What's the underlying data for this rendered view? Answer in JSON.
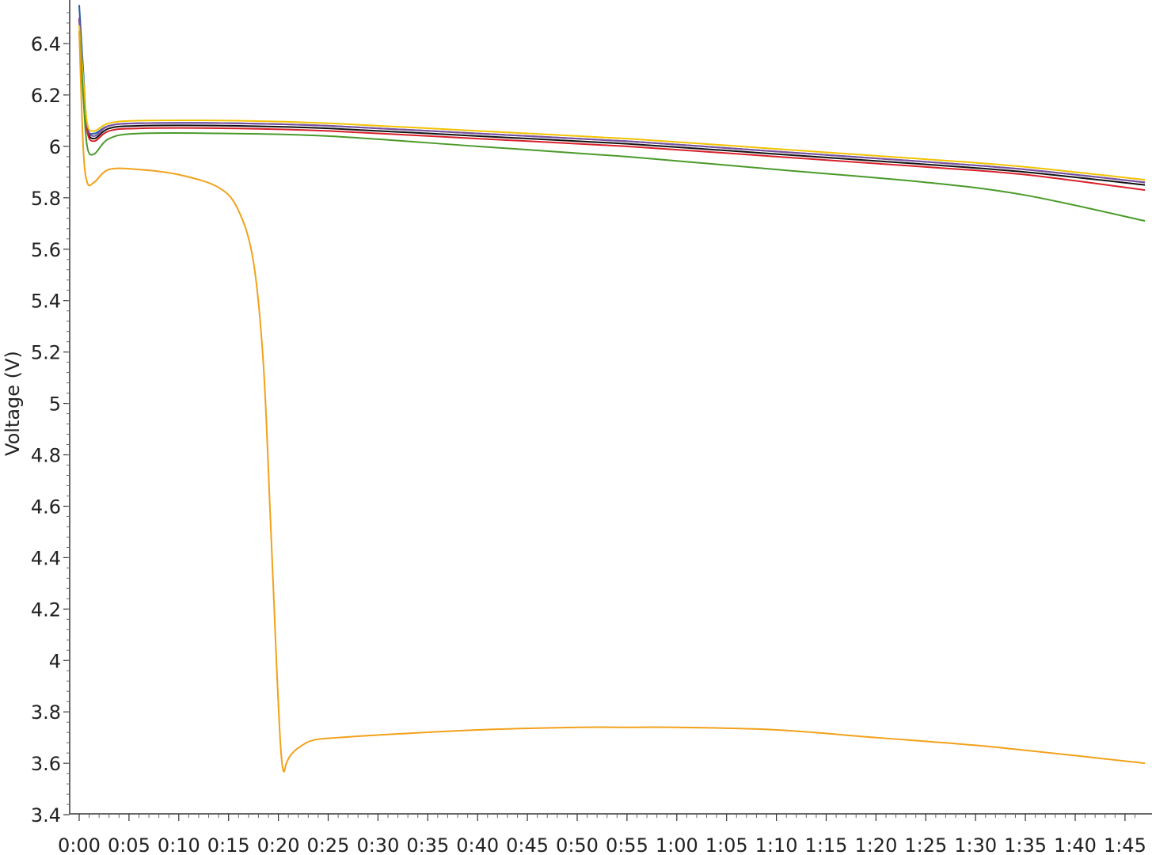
{
  "chart_data": {
    "type": "line",
    "title": "",
    "xlabel": "",
    "ylabel": "Voltage (V)",
    "xlim": [
      0,
      106
    ],
    "ylim": [
      3.4,
      6.55
    ],
    "grid": false,
    "legend": "none",
    "x_tick_labels": [
      "0:00",
      "0:05",
      "0:10",
      "0:15",
      "0:20",
      "0:25",
      "0:30",
      "0:35",
      "0:40",
      "0:45",
      "0:50",
      "0:55",
      "1:00",
      "1:05",
      "1:10",
      "1:15",
      "1:20",
      "1:25",
      "1:30",
      "1:35",
      "1:40",
      "1:45"
    ],
    "x_tick_values": [
      0,
      5,
      10,
      15,
      20,
      25,
      30,
      35,
      40,
      45,
      50,
      55,
      60,
      65,
      70,
      75,
      80,
      85,
      90,
      95,
      100,
      105
    ],
    "y_tick_labels": [
      "3.4",
      "3.6",
      "3.8",
      "4",
      "4.2",
      "4.4",
      "4.6",
      "4.8",
      "5",
      "5.2",
      "5.4",
      "5.6",
      "5.8",
      "6",
      "6.2",
      "6.4"
    ],
    "y_tick_values": [
      3.4,
      3.6,
      3.8,
      4.0,
      4.2,
      4.4,
      4.6,
      4.8,
      5.0,
      5.2,
      5.4,
      5.6,
      5.8,
      6.0,
      6.2,
      6.4
    ],
    "series": [
      {
        "color": "#1f5fa8",
        "x": [
          0,
          0.4,
          0.8,
          1.5,
          3,
          6,
          15,
          25,
          40,
          55,
          70,
          85,
          95,
          107
        ],
        "y": [
          6.55,
          6.3,
          6.08,
          6.05,
          6.08,
          6.09,
          6.09,
          6.08,
          6.05,
          6.02,
          5.98,
          5.94,
          5.91,
          5.86
        ]
      },
      {
        "color": "#111111",
        "x": [
          0,
          0.4,
          0.8,
          1.5,
          3,
          6,
          15,
          25,
          40,
          55,
          70,
          85,
          95,
          107
        ],
        "y": [
          6.5,
          6.25,
          6.07,
          6.03,
          6.07,
          6.08,
          6.08,
          6.07,
          6.04,
          6.01,
          5.97,
          5.93,
          5.9,
          5.85
        ]
      },
      {
        "color": "#d8202a",
        "x": [
          0,
          0.4,
          0.8,
          1.5,
          3,
          6,
          15,
          25,
          40,
          55,
          70,
          85,
          95,
          107
        ],
        "y": [
          6.5,
          6.25,
          6.06,
          6.02,
          6.06,
          6.07,
          6.07,
          6.06,
          6.03,
          6.0,
          5.96,
          5.92,
          5.89,
          5.83
        ]
      },
      {
        "color": "#7a4fa0",
        "x": [
          0,
          0.4,
          0.8,
          1.5,
          3,
          6,
          15,
          25,
          40,
          55,
          70,
          85,
          95,
          107
        ],
        "y": [
          6.5,
          6.25,
          6.08,
          6.04,
          6.08,
          6.09,
          6.09,
          6.08,
          6.05,
          6.02,
          5.98,
          5.94,
          5.91,
          5.86
        ]
      },
      {
        "color": "#f2c200",
        "x": [
          0,
          0.4,
          0.8,
          1.5,
          3,
          6,
          15,
          25,
          40,
          55,
          70,
          85,
          95,
          107
        ],
        "y": [
          6.47,
          6.27,
          6.09,
          6.06,
          6.09,
          6.1,
          6.1,
          6.09,
          6.06,
          6.03,
          5.99,
          5.95,
          5.92,
          5.87
        ]
      },
      {
        "color": "#4a9a2a",
        "x": [
          0,
          0.4,
          0.8,
          1.5,
          3,
          6,
          15,
          25,
          40,
          55,
          70,
          85,
          95,
          107
        ],
        "y": [
          6.45,
          6.2,
          6.0,
          5.97,
          6.03,
          6.05,
          6.05,
          6.04,
          6.0,
          5.96,
          5.91,
          5.86,
          5.81,
          5.71
        ]
      },
      {
        "color": "#f2a11a",
        "x": [
          0,
          0.4,
          0.8,
          1.5,
          3,
          6,
          10,
          14,
          16,
          17.5,
          18.5,
          19.2,
          19.8,
          20.2,
          20.5,
          20.8,
          21.2,
          22,
          23.5,
          26,
          30,
          40,
          50,
          55,
          60,
          70,
          80,
          90,
          100,
          107
        ],
        "y": [
          6.45,
          6.0,
          5.86,
          5.86,
          5.91,
          5.91,
          5.89,
          5.84,
          5.75,
          5.55,
          5.15,
          4.55,
          4.0,
          3.68,
          3.57,
          3.6,
          3.63,
          3.66,
          3.69,
          3.7,
          3.71,
          3.73,
          3.74,
          3.74,
          3.74,
          3.73,
          3.7,
          3.67,
          3.63,
          3.6
        ]
      }
    ]
  }
}
